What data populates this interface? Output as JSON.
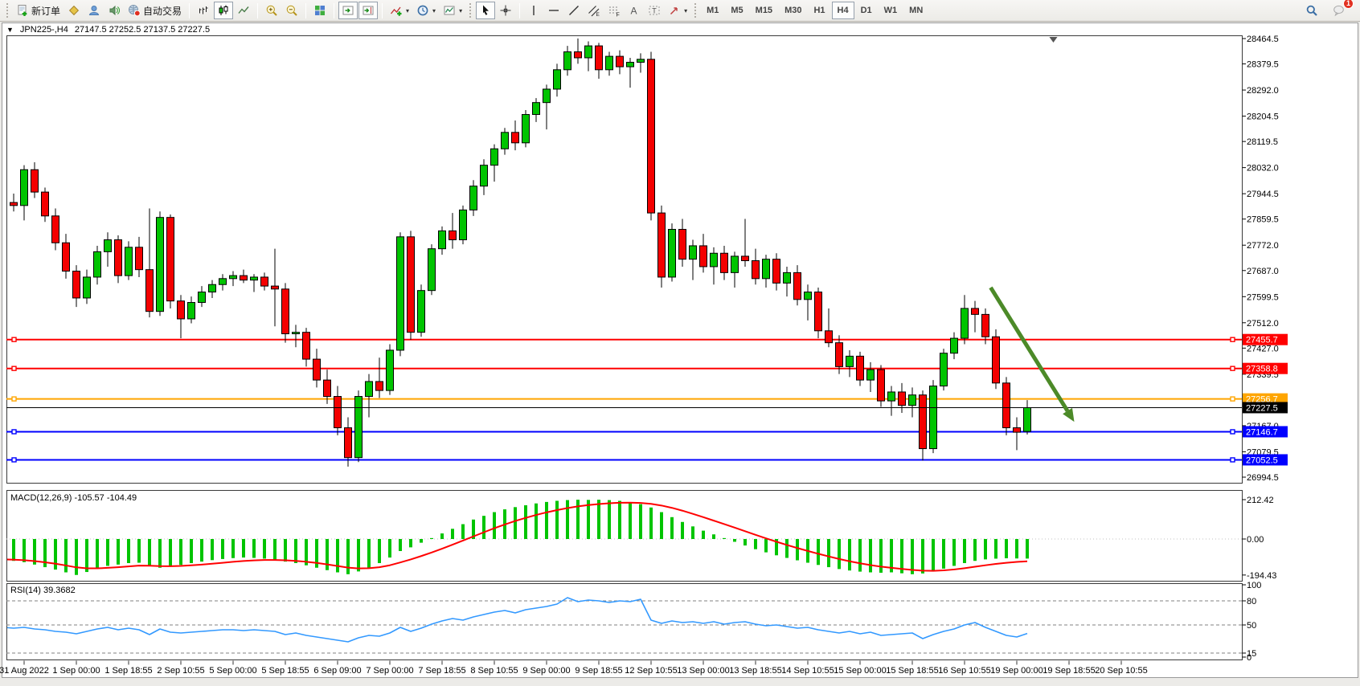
{
  "toolbar": {
    "new_order_label": "新订单",
    "auto_trading_label": "自动交易",
    "timeframes": [
      "M1",
      "M5",
      "M15",
      "M30",
      "H1",
      "H4",
      "D1",
      "W1",
      "MN"
    ],
    "active_timeframe": "H4",
    "notification_count": "1"
  },
  "chart": {
    "symbol_period": "JPN225-,H4",
    "ohlc_text": "27147.5 27252.5 27137.5 27227.5"
  },
  "chart_data": [
    {
      "type": "candlestick",
      "symbol": "JPN225-",
      "timeframe": "H4",
      "y_axis": {
        "max": 28464.5,
        "min": 26994.5,
        "ticks": [
          28464.5,
          28379.5,
          28292.0,
          28204.5,
          28119.5,
          28032.0,
          27944.5,
          27859.5,
          27772.0,
          27687.0,
          27599.5,
          27512.0,
          27427.0,
          27339.5,
          27167.0,
          27079.5,
          26994.5
        ]
      },
      "x_labels": [
        "31 Aug 2022",
        "1 Sep 00:00",
        "1 Sep 18:55",
        "2 Sep 10:55",
        "5 Sep 00:00",
        "5 Sep 18:55",
        "6 Sep 09:00",
        "7 Sep 00:00",
        "7 Sep 18:55",
        "8 Sep 10:55",
        "9 Sep 00:00",
        "9 Sep 18:55",
        "12 Sep 10:55",
        "13 Sep 00:00",
        "13 Sep 18:55",
        "14 Sep 10:55",
        "15 Sep 00:00",
        "15 Sep 18:55",
        "16 Sep 10:55",
        "19 Sep 00:00",
        "19 Sep 18:55",
        "20 Sep 10:55"
      ],
      "x_label_first_bar": 2,
      "x_label_step": 5,
      "candles": [
        [
          27960,
          27990,
          27900,
          27915
        ],
        [
          27915,
          27945,
          27885,
          27905
        ],
        [
          27905,
          28040,
          27855,
          28025
        ],
        [
          28025,
          28050,
          27930,
          27950
        ],
        [
          27950,
          27965,
          27850,
          27870
        ],
        [
          27870,
          27895,
          27755,
          27780
        ],
        [
          27780,
          27810,
          27660,
          27685
        ],
        [
          27685,
          27705,
          27565,
          27595
        ],
        [
          27595,
          27690,
          27575,
          27665
        ],
        [
          27665,
          27770,
          27640,
          27750
        ],
        [
          27750,
          27815,
          27700,
          27790
        ],
        [
          27790,
          27805,
          27645,
          27670
        ],
        [
          27670,
          27785,
          27655,
          27765
        ],
        [
          27765,
          27800,
          27665,
          27690
        ],
        [
          27690,
          27895,
          27530,
          27550
        ],
        [
          27550,
          27885,
          27535,
          27865
        ],
        [
          27865,
          27875,
          27560,
          27585
        ],
        [
          27585,
          27605,
          27460,
          27525
        ],
        [
          27525,
          27600,
          27510,
          27580
        ],
        [
          27580,
          27635,
          27565,
          27615
        ],
        [
          27615,
          27655,
          27595,
          27640
        ],
        [
          27640,
          27675,
          27620,
          27660
        ],
        [
          27660,
          27685,
          27635,
          27670
        ],
        [
          27670,
          27690,
          27645,
          27655
        ],
        [
          27655,
          27675,
          27615,
          27665
        ],
        [
          27665,
          27680,
          27620,
          27635
        ],
        [
          27635,
          27760,
          27500,
          27625
        ],
        [
          27625,
          27645,
          27445,
          27475
        ],
        [
          27475,
          27505,
          27430,
          27480
        ],
        [
          27480,
          27495,
          27365,
          27390
        ],
        [
          27390,
          27425,
          27295,
          27320
        ],
        [
          27320,
          27355,
          27240,
          27265
        ],
        [
          27265,
          27300,
          27135,
          27160
        ],
        [
          27160,
          27195,
          27030,
          27060
        ],
        [
          27060,
          27285,
          27045,
          27265
        ],
        [
          27265,
          27340,
          27195,
          27315
        ],
        [
          27315,
          27395,
          27260,
          27285
        ],
        [
          27285,
          27440,
          27270,
          27420
        ],
        [
          27420,
          27815,
          27400,
          27800
        ],
        [
          27800,
          27820,
          27455,
          27480
        ],
        [
          27480,
          27640,
          27465,
          27620
        ],
        [
          27620,
          27775,
          27605,
          27760
        ],
        [
          27760,
          27835,
          27740,
          27820
        ],
        [
          27820,
          27880,
          27760,
          27790
        ],
        [
          27790,
          27905,
          27775,
          27890
        ],
        [
          27890,
          27990,
          27870,
          27970
        ],
        [
          27970,
          28060,
          27940,
          28040
        ],
        [
          28040,
          28110,
          27985,
          28095
        ],
        [
          28095,
          28165,
          28075,
          28150
        ],
        [
          28150,
          28190,
          28090,
          28115
        ],
        [
          28115,
          28225,
          28100,
          28210
        ],
        [
          28210,
          28265,
          28185,
          28250
        ],
        [
          28250,
          28310,
          28160,
          28295
        ],
        [
          28295,
          28380,
          28270,
          28360
        ],
        [
          28360,
          28440,
          28340,
          28420
        ],
        [
          28420,
          28465,
          28380,
          28400
        ],
        [
          28400,
          28455,
          28355,
          28440
        ],
        [
          28440,
          28450,
          28330,
          28360
        ],
        [
          28360,
          28420,
          28340,
          28405
        ],
        [
          28405,
          28425,
          28345,
          28370
        ],
        [
          28370,
          28400,
          28300,
          28385
        ],
        [
          28385,
          28415,
          28350,
          28395
        ],
        [
          28395,
          28420,
          27855,
          27880
        ],
        [
          27880,
          27905,
          27630,
          27665
        ],
        [
          27665,
          27845,
          27650,
          27825
        ],
        [
          27825,
          27860,
          27700,
          27725
        ],
        [
          27725,
          27790,
          27655,
          27770
        ],
        [
          27770,
          27810,
          27680,
          27700
        ],
        [
          27700,
          27765,
          27640,
          27745
        ],
        [
          27745,
          27770,
          27655,
          27680
        ],
        [
          27680,
          27750,
          27630,
          27735
        ],
        [
          27735,
          27860,
          27700,
          27720
        ],
        [
          27720,
          27760,
          27640,
          27660
        ],
        [
          27660,
          27740,
          27630,
          27725
        ],
        [
          27725,
          27745,
          27620,
          27645
        ],
        [
          27645,
          27700,
          27600,
          27680
        ],
        [
          27680,
          27705,
          27570,
          27590
        ],
        [
          27590,
          27640,
          27520,
          27615
        ],
        [
          27615,
          27630,
          27460,
          27485
        ],
        [
          27485,
          27560,
          27430,
          27445
        ],
        [
          27445,
          27470,
          27340,
          27365
        ],
        [
          27365,
          27420,
          27330,
          27400
        ],
        [
          27400,
          27415,
          27300,
          27320
        ],
        [
          27320,
          27380,
          27280,
          27355
        ],
        [
          27355,
          27370,
          27230,
          27250
        ],
        [
          27250,
          27300,
          27200,
          27280
        ],
        [
          27280,
          27310,
          27210,
          27235
        ],
        [
          27235,
          27295,
          27195,
          27270
        ],
        [
          27270,
          27285,
          27050,
          27090
        ],
        [
          27090,
          27320,
          27075,
          27300
        ],
        [
          27300,
          27425,
          27285,
          27410
        ],
        [
          27410,
          27480,
          27390,
          27460
        ],
        [
          27460,
          27605,
          27440,
          27560
        ],
        [
          27560,
          27585,
          27480,
          27540
        ],
        [
          27540,
          27560,
          27440,
          27465
        ],
        [
          27465,
          27490,
          27290,
          27310
        ],
        [
          27310,
          27330,
          27135,
          27160
        ],
        [
          27160,
          27195,
          27085,
          27145
        ],
        [
          27147.5,
          27252.5,
          27137.5,
          27227.5
        ]
      ],
      "hlines": [
        {
          "price": 27455.7,
          "color": "#ff0000",
          "label": "27455.7"
        },
        {
          "price": 27358.8,
          "color": "#ff0000",
          "label": "27358.8"
        },
        {
          "price": 27256.7,
          "color": "#ffa500",
          "label": "27256.7"
        },
        {
          "price": 27146.7,
          "color": "#0000ff",
          "label": "27146.7"
        },
        {
          "price": 27052.5,
          "color": "#0000ff",
          "label": "27052.5"
        }
      ],
      "current_price": {
        "price": 27227.5,
        "label": "27227.5",
        "color": "#000000"
      },
      "arrow": {
        "color": "#4c8a28",
        "from_bar": 94.5,
        "from_price": 27630,
        "to_bar": 102.5,
        "to_price": 27180
      },
      "shift_marker_bar": 100.5,
      "colors": {
        "bull": "#00c400",
        "bear": "#f40000",
        "wick": "#000000"
      }
    },
    {
      "type": "bar",
      "name": "MACD(12,26,9)",
      "label": "MACD(12,26,9) -105.57 -104.49",
      "current_main": -105.57,
      "current_signal": -104.49,
      "signal_period": 9,
      "signal_color": "#ff0000",
      "bar_color": "#00c400",
      "y_ticks": [
        212.42,
        0.0,
        -194.43
      ],
      "ylim": [
        -194.43,
        212.42
      ],
      "values": [
        -110,
        -118,
        -125,
        -138,
        -152,
        -165,
        -180,
        -194,
        -178,
        -160,
        -145,
        -138,
        -130,
        -128,
        -145,
        -155,
        -148,
        -140,
        -130,
        -122,
        -114,
        -108,
        -103,
        -100,
        -102,
        -106,
        -112,
        -122,
        -130,
        -142,
        -155,
        -168,
        -180,
        -190,
        -175,
        -155,
        -130,
        -100,
        -65,
        -45,
        -20,
        5,
        30,
        55,
        80,
        105,
        125,
        145,
        160,
        172,
        182,
        192,
        200,
        206,
        210,
        212,
        211,
        212,
        210,
        206,
        198,
        188,
        170,
        145,
        118,
        92,
        68,
        45,
        25,
        5,
        -15,
        -35,
        -55,
        -72,
        -88,
        -102,
        -115,
        -128,
        -140,
        -152,
        -162,
        -170,
        -176,
        -180,
        -182,
        -180,
        -185,
        -190,
        -186,
        -175,
        -160,
        -145,
        -130,
        -118,
        -110,
        -106,
        -104,
        -105,
        -105.57
      ]
    },
    {
      "type": "line",
      "name": "RSI(14)",
      "label": "RSI(14) 39.3682",
      "current": 39.3682,
      "line_color": "#3399ff",
      "levels": [
        80,
        50,
        15
      ],
      "y_ticks": [
        100,
        80,
        50,
        15,
        0
      ],
      "ylim": [
        0,
        100
      ],
      "values": [
        47,
        46,
        47,
        45,
        44,
        42,
        41,
        39,
        42,
        45,
        47,
        44,
        46,
        44,
        38,
        45,
        41,
        40,
        41,
        42,
        43,
        44,
        44,
        43,
        44,
        43,
        42,
        38,
        40,
        37,
        35,
        33,
        31,
        29,
        34,
        37,
        36,
        40,
        47,
        42,
        46,
        51,
        55,
        58,
        56,
        60,
        63,
        66,
        68,
        65,
        69,
        71,
        73,
        76,
        84,
        79,
        81,
        80,
        78,
        80,
        79,
        82,
        56,
        52,
        55,
        53,
        54,
        52,
        54,
        51,
        53,
        54,
        51,
        49,
        50,
        48,
        46,
        47,
        44,
        42,
        40,
        42,
        39,
        41,
        37,
        38,
        39,
        40,
        33,
        38,
        42,
        45,
        50,
        53,
        47,
        42,
        37,
        35,
        39.37
      ]
    }
  ]
}
